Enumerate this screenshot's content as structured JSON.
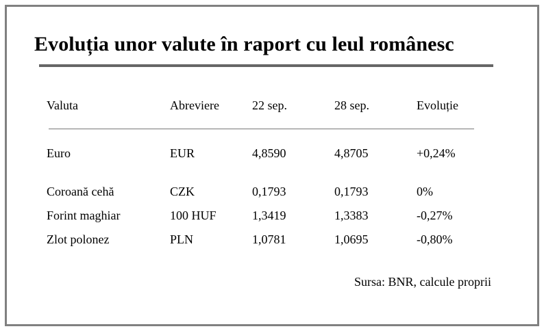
{
  "title": "Evoluția unor valute în raport cu leul românesc",
  "source": "Sursa: BNR, calcule proprii",
  "chart_data": {
    "type": "table",
    "title": "Evoluția unor valute în raport cu leul românesc",
    "columns": [
      "Valuta",
      "Abreviere",
      "22 sep.",
      "28 sep.",
      "Evoluție"
    ],
    "rows": [
      [
        "Euro",
        "EUR",
        "4,8590",
        "4,8705",
        "+0,24%"
      ],
      [
        "Coroană cehă",
        "CZK",
        "0,1793",
        "0,1793",
        "0%"
      ],
      [
        "Forint maghiar",
        "100 HUF",
        "1,3419",
        "1,3383",
        "-0,27%"
      ],
      [
        "Zlot polonez",
        "PLN",
        "1,0781",
        "1,0695",
        "-0,80%"
      ]
    ],
    "source": "Sursa: BNR, calcule proprii"
  }
}
